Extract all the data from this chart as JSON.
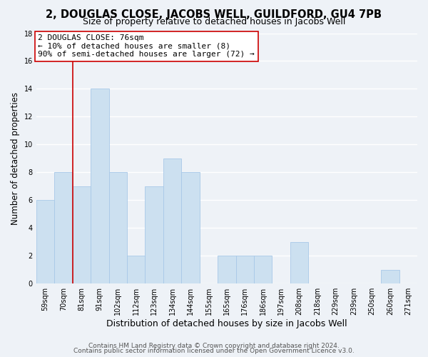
{
  "title": "2, DOUGLAS CLOSE, JACOBS WELL, GUILDFORD, GU4 7PB",
  "subtitle": "Size of property relative to detached houses in Jacobs Well",
  "xlabel": "Distribution of detached houses by size in Jacobs Well",
  "ylabel": "Number of detached properties",
  "bar_color": "#cce0f0",
  "bar_edge_color": "#a8c8e8",
  "bin_labels": [
    "59sqm",
    "70sqm",
    "81sqm",
    "91sqm",
    "102sqm",
    "112sqm",
    "123sqm",
    "134sqm",
    "144sqm",
    "155sqm",
    "165sqm",
    "176sqm",
    "186sqm",
    "197sqm",
    "208sqm",
    "218sqm",
    "229sqm",
    "239sqm",
    "250sqm",
    "260sqm",
    "271sqm"
  ],
  "bar_heights": [
    6,
    8,
    7,
    14,
    8,
    2,
    7,
    9,
    8,
    0,
    2,
    2,
    2,
    0,
    3,
    0,
    0,
    0,
    0,
    1,
    0
  ],
  "ylim": [
    0,
    18
  ],
  "yticks": [
    0,
    2,
    4,
    6,
    8,
    10,
    12,
    14,
    16,
    18
  ],
  "annotation_line1": "2 DOUGLAS CLOSE: 76sqm",
  "annotation_line2": "← 10% of detached houses are smaller (8)",
  "annotation_line3": "90% of semi-detached houses are larger (72) →",
  "red_line_x": 2.0,
  "red_line_color": "#cc0000",
  "background_color": "#eef2f7",
  "grid_color": "#ffffff",
  "footer_line1": "Contains HM Land Registry data © Crown copyright and database right 2024.",
  "footer_line2": "Contains public sector information licensed under the Open Government Licence v3.0.",
  "title_fontsize": 10.5,
  "subtitle_fontsize": 9,
  "xlabel_fontsize": 9,
  "ylabel_fontsize": 8.5,
  "tick_fontsize": 7,
  "annotation_fontsize": 8,
  "footer_fontsize": 6.5
}
